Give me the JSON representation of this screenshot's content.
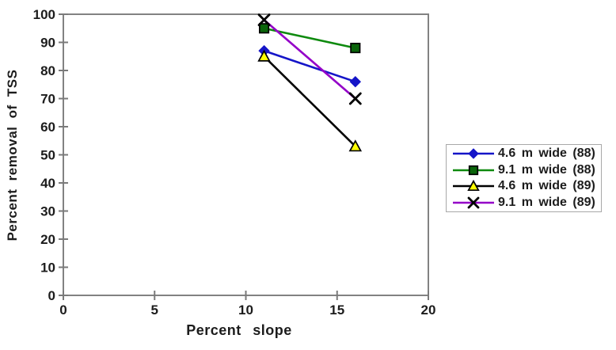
{
  "figure": {
    "background": "#ffffff",
    "frame_color": "#828282",
    "tick_color": "#7a7a7a",
    "text_color": "#1c1c1c",
    "legend_border_color": "#a8a8a8"
  },
  "chart_data": {
    "type": "line",
    "title": "",
    "xlabel": "Percent slope",
    "ylabel": "Percent removal of TSS",
    "xlim": [
      0,
      20
    ],
    "ylim": [
      0,
      100
    ],
    "x_ticks": [
      0,
      5,
      10,
      15,
      20
    ],
    "y_ticks": [
      0,
      10,
      20,
      30,
      40,
      50,
      60,
      70,
      80,
      90,
      100
    ],
    "grid": false,
    "legend_position": "right",
    "series": [
      {
        "name": "4.6 m wide (88)",
        "color": "#1515C8",
        "marker": "diamond",
        "marker_fill": "#1515C8",
        "marker_stroke": "#1515C8",
        "points": [
          [
            11,
            87
          ],
          [
            16,
            76
          ]
        ]
      },
      {
        "name": "9.1 m wide (88)",
        "color": "#0E8A0E",
        "marker": "square",
        "marker_fill": "#0A640A",
        "marker_stroke": "#000000",
        "points": [
          [
            11,
            95
          ],
          [
            16,
            88
          ]
        ]
      },
      {
        "name": "4.6 m wide (89)",
        "color": "#000000",
        "marker": "triangle",
        "marker_fill": "#FFFF00",
        "marker_stroke": "#000000",
        "points": [
          [
            11,
            85
          ],
          [
            16,
            53
          ]
        ]
      },
      {
        "name": "9.1 m wide (89)",
        "color": "#9400C8",
        "marker": "x",
        "marker_fill": "#000000",
        "marker_stroke": "#000000",
        "points": [
          [
            11,
            98
          ],
          [
            16,
            70
          ]
        ]
      }
    ]
  }
}
